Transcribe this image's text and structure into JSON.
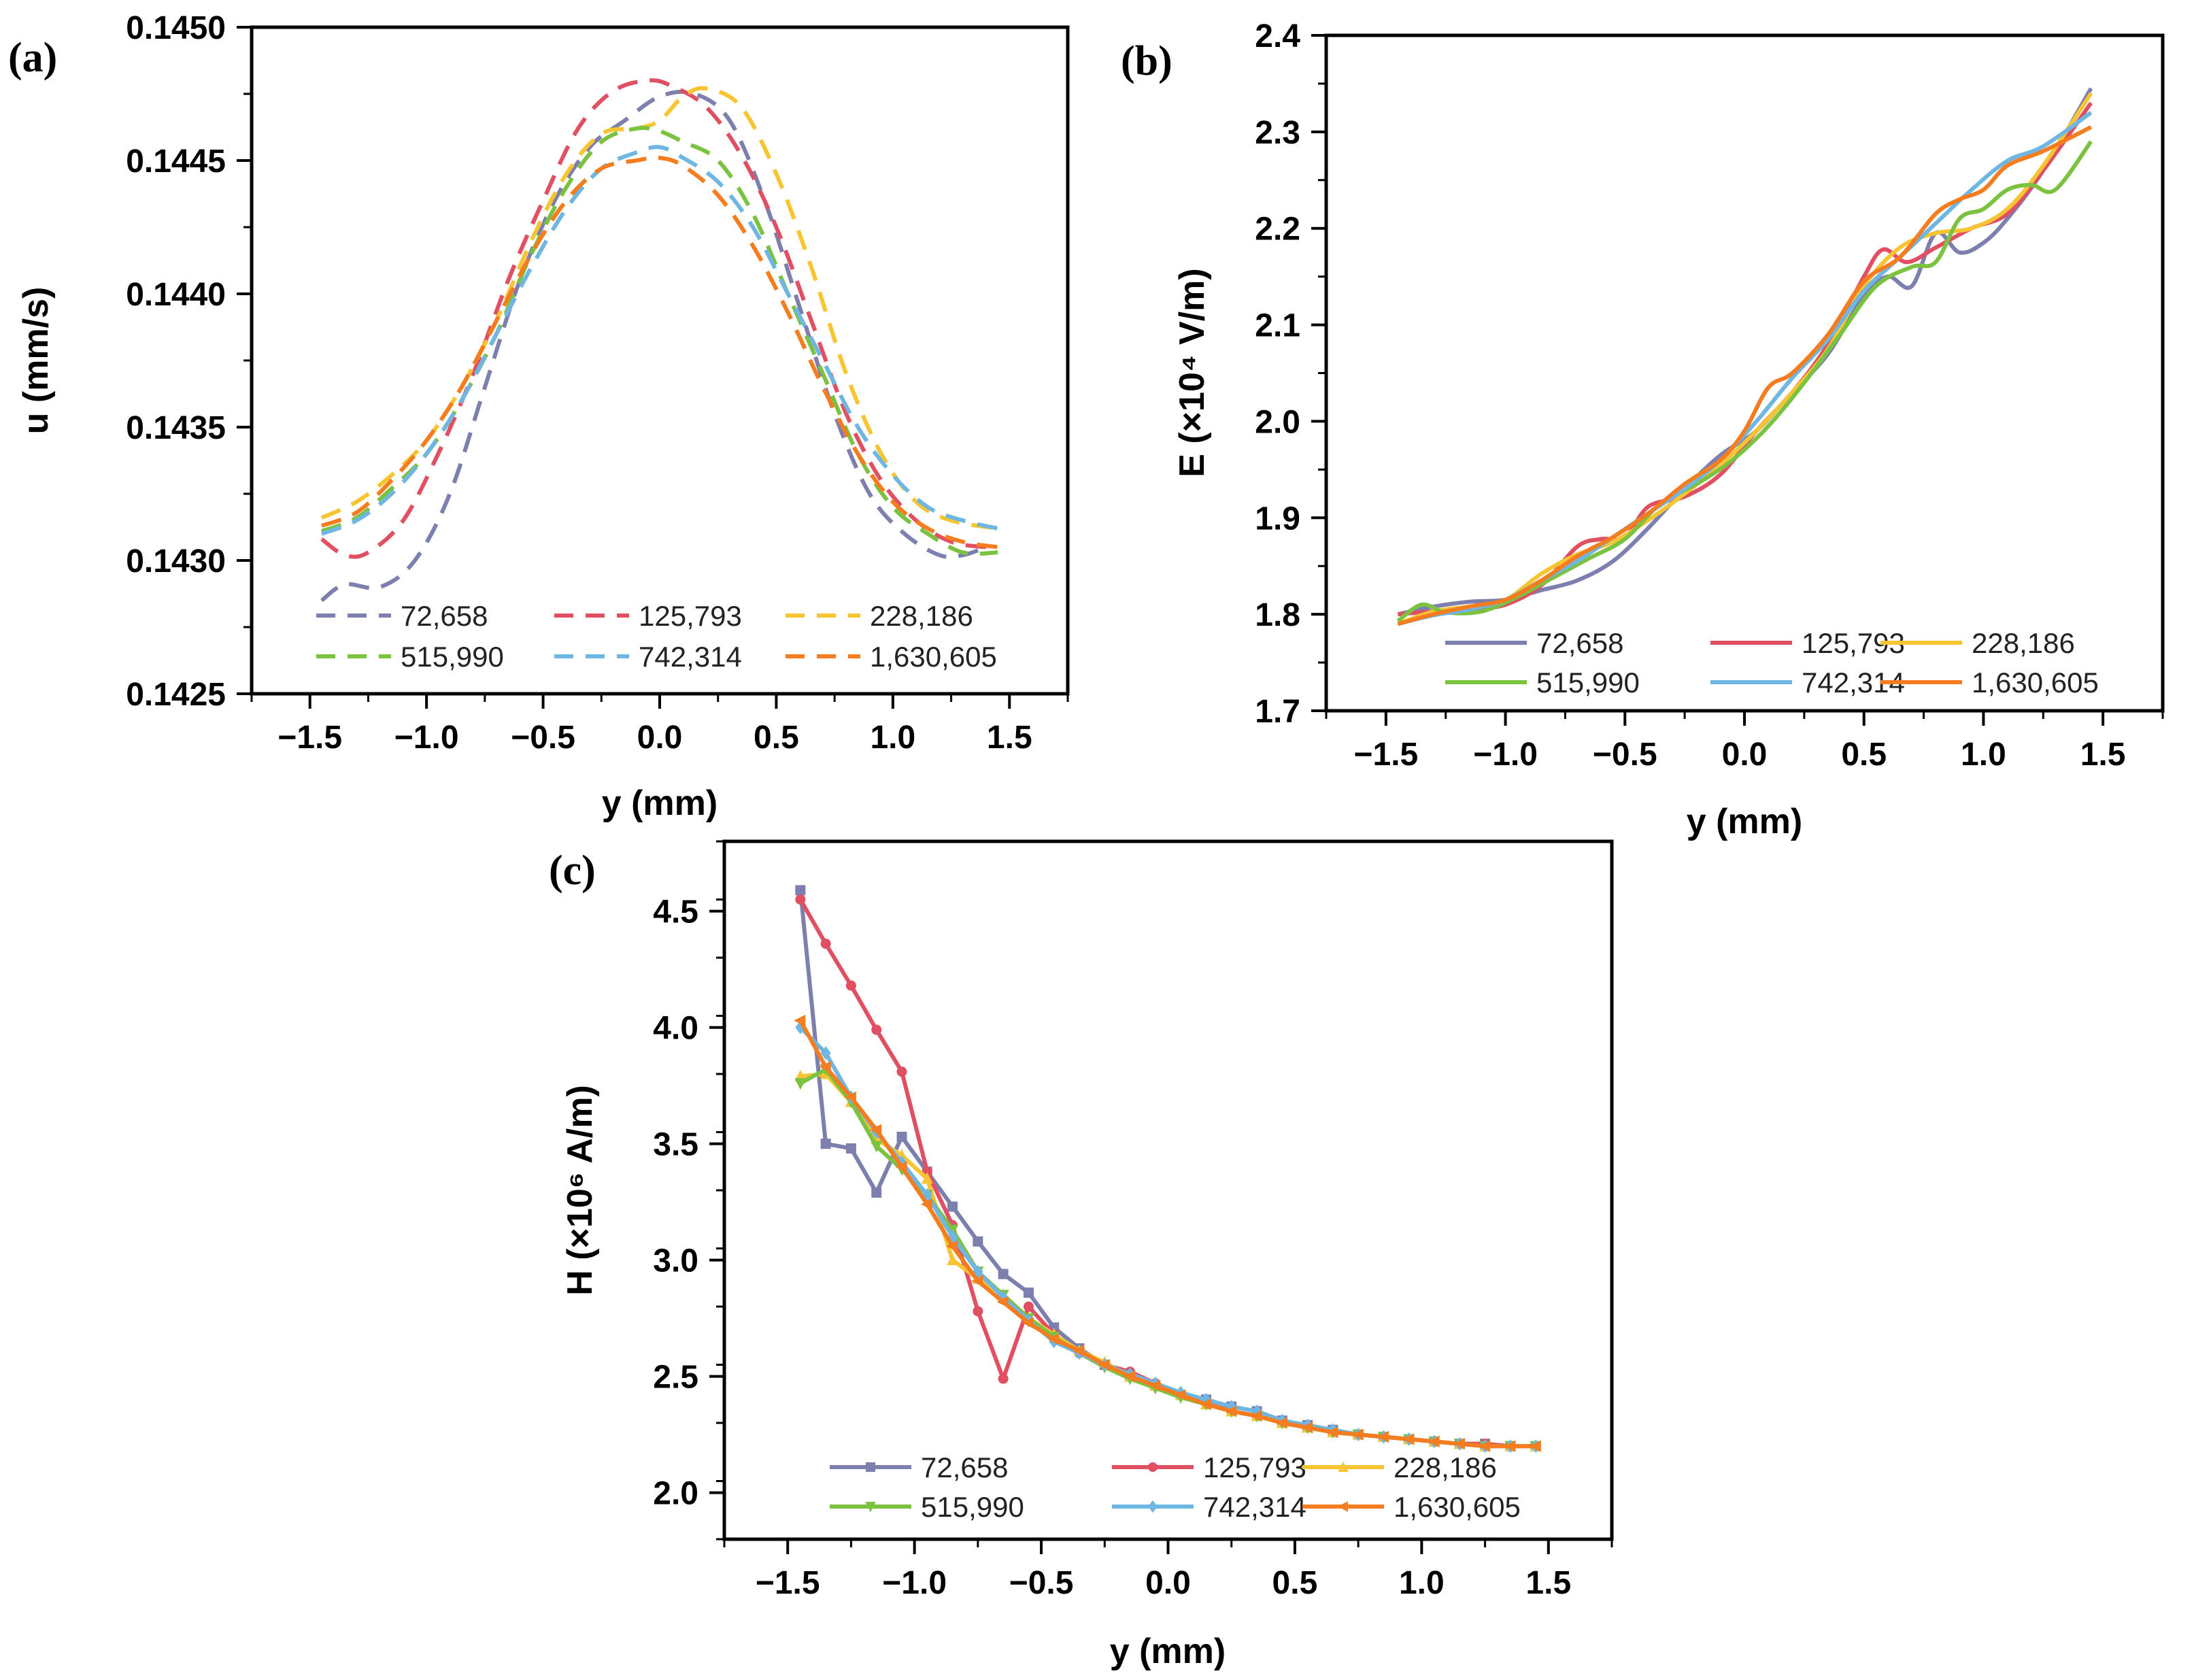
{
  "colors": {
    "72,658": "#7d7fae",
    "125,793": "#e04f62",
    "228,186": "#f7c531",
    "515,990": "#7cc241",
    "742,314": "#6fb7e2",
    "1,630,605": "#f57d1f"
  },
  "chart_data": [
    {
      "panel": "(a)",
      "type": "line",
      "line_style": "dashed",
      "xlabel": "y (mm)",
      "ylabel": "u (mm/s)",
      "xlim": [
        -1.75,
        1.75
      ],
      "ylim": [
        0.1425,
        0.145
      ],
      "xticks": [
        "−1.5",
        "−1.0",
        "−0.5",
        "0.0",
        "0.5",
        "1.0",
        "1.5"
      ],
      "yticks": [
        "0.1425",
        "0.1430",
        "0.1435",
        "0.1440",
        "0.1445",
        "0.1450"
      ],
      "legend": [
        "72,658",
        "125,793",
        "228,186",
        "515,990",
        "742,314",
        "1,630,605"
      ],
      "series": [
        {
          "name": "72,658",
          "x": [
            -1.45,
            -1.35,
            -1.2,
            -1.05,
            -0.9,
            -0.75,
            -0.6,
            -0.45,
            -0.3,
            -0.15,
            0.0,
            0.15,
            0.3,
            0.45,
            0.6,
            0.75,
            0.9,
            1.05,
            1.2,
            1.3,
            1.4
          ],
          "y": [
            0.14285,
            0.14291,
            0.1429,
            0.143,
            0.14325,
            0.14365,
            0.14405,
            0.14435,
            0.14455,
            0.14465,
            0.14474,
            0.14475,
            0.14465,
            0.14435,
            0.14395,
            0.14355,
            0.14325,
            0.1431,
            0.14302,
            0.14302,
            0.14305
          ]
        },
        {
          "name": "125,793",
          "x": [
            -1.45,
            -1.35,
            -1.25,
            -1.1,
            -0.95,
            -0.8,
            -0.65,
            -0.5,
            -0.35,
            -0.2,
            -0.05,
            0.05,
            0.2,
            0.35,
            0.5,
            0.65,
            0.8,
            0.95,
            1.1,
            1.25,
            1.4
          ],
          "y": [
            0.14308,
            0.14302,
            0.14303,
            0.14315,
            0.1434,
            0.1437,
            0.14405,
            0.14435,
            0.14462,
            0.14476,
            0.1448,
            0.14478,
            0.1447,
            0.14452,
            0.14425,
            0.1439,
            0.14355,
            0.1433,
            0.14315,
            0.14307,
            0.14305
          ]
        },
        {
          "name": "228,186",
          "x": [
            -1.45,
            -1.3,
            -1.15,
            -1.0,
            -0.85,
            -0.7,
            -0.55,
            -0.4,
            -0.25,
            -0.1,
            0.0,
            0.1,
            0.2,
            0.35,
            0.5,
            0.65,
            0.8,
            0.95,
            1.1,
            1.25,
            1.45
          ],
          "y": [
            0.14316,
            0.14322,
            0.14332,
            0.14345,
            0.14365,
            0.1439,
            0.1442,
            0.14445,
            0.1446,
            0.14462,
            0.14465,
            0.14474,
            0.14477,
            0.1447,
            0.14445,
            0.1441,
            0.1437,
            0.1434,
            0.14322,
            0.14315,
            0.14312
          ]
        },
        {
          "name": "515,990",
          "x": [
            -1.45,
            -1.3,
            -1.15,
            -1.0,
            -0.85,
            -0.7,
            -0.55,
            -0.4,
            -0.25,
            -0.1,
            0.0,
            0.1,
            0.25,
            0.4,
            0.55,
            0.7,
            0.85,
            1.0,
            1.15,
            1.3,
            1.45
          ],
          "y": [
            0.14311,
            0.14316,
            0.14327,
            0.1434,
            0.1436,
            0.14385,
            0.14415,
            0.1444,
            0.14457,
            0.14462,
            0.14461,
            0.14457,
            0.1445,
            0.1443,
            0.144,
            0.1437,
            0.1434,
            0.1432,
            0.1431,
            0.14303,
            0.14303
          ]
        },
        {
          "name": "742,314",
          "x": [
            -1.45,
            -1.3,
            -1.15,
            -1.0,
            -0.85,
            -0.7,
            -0.55,
            -0.4,
            -0.25,
            -0.1,
            0.0,
            0.1,
            0.25,
            0.4,
            0.55,
            0.7,
            0.85,
            1.0,
            1.15,
            1.3,
            1.45
          ],
          "y": [
            0.1431,
            0.14315,
            0.14325,
            0.1434,
            0.1436,
            0.14385,
            0.1441,
            0.14432,
            0.14447,
            0.14453,
            0.14455,
            0.14451,
            0.14442,
            0.14425,
            0.144,
            0.14375,
            0.1435,
            0.14332,
            0.1432,
            0.14315,
            0.14312
          ]
        },
        {
          "name": "1,630,605",
          "x": [
            -1.45,
            -1.3,
            -1.15,
            -1.0,
            -0.85,
            -0.7,
            -0.55,
            -0.4,
            -0.25,
            -0.1,
            0.0,
            0.1,
            0.25,
            0.4,
            0.55,
            0.7,
            0.85,
            1.0,
            1.15,
            1.3,
            1.45
          ],
          "y": [
            0.14313,
            0.14318,
            0.1433,
            0.14345,
            0.14365,
            0.1439,
            0.14415,
            0.14435,
            0.14447,
            0.1445,
            0.14451,
            0.14448,
            0.14437,
            0.14418,
            0.14393,
            0.14365,
            0.1434,
            0.14322,
            0.14312,
            0.14307,
            0.14305
          ]
        }
      ]
    },
    {
      "panel": "(b)",
      "type": "line",
      "line_style": "solid",
      "xlabel": "y (mm)",
      "ylabel": "E (×10⁴ V/m)",
      "xlim": [
        -1.75,
        1.75
      ],
      "ylim": [
        1.7,
        2.4
      ],
      "xticks": [
        "−1.5",
        "−1.0",
        "−0.5",
        "0.0",
        "0.5",
        "1.0",
        "1.5"
      ],
      "yticks": [
        "1.7",
        "1.8",
        "1.9",
        "2.0",
        "2.1",
        "2.2",
        "2.3",
        "2.4"
      ],
      "legend": [
        "72,658",
        "125,793",
        "228,186",
        "515,990",
        "742,314",
        "1,630,605"
      ],
      "series": [
        {
          "name": "72,658",
          "x": [
            -1.45,
            -1.3,
            -1.15,
            -1.0,
            -0.85,
            -0.7,
            -0.55,
            -0.4,
            -0.25,
            -0.1,
            0.05,
            0.2,
            0.35,
            0.5,
            0.6,
            0.7,
            0.8,
            0.9,
            1.0,
            1.1,
            1.25,
            1.45
          ],
          "y": [
            1.8,
            1.808,
            1.813,
            1.815,
            1.825,
            1.835,
            1.855,
            1.89,
            1.93,
            1.965,
            1.99,
            2.03,
            2.07,
            2.13,
            2.15,
            2.14,
            2.195,
            2.175,
            2.185,
            2.21,
            2.26,
            2.345
          ]
        },
        {
          "name": "125,793",
          "x": [
            -1.45,
            -1.3,
            -1.15,
            -1.0,
            -0.85,
            -0.7,
            -0.6,
            -0.5,
            -0.4,
            -0.25,
            -0.1,
            0.05,
            0.2,
            0.35,
            0.5,
            0.58,
            0.68,
            0.8,
            0.95,
            1.1,
            1.25,
            1.45
          ],
          "y": [
            1.8,
            1.803,
            1.805,
            1.81,
            1.83,
            1.87,
            1.878,
            1.88,
            1.912,
            1.922,
            1.945,
            1.99,
            2.03,
            2.08,
            2.15,
            2.178,
            2.165,
            2.18,
            2.2,
            2.215,
            2.26,
            2.33
          ]
        },
        {
          "name": "228,186",
          "x": [
            -1.45,
            -1.3,
            -1.15,
            -1.0,
            -0.85,
            -0.7,
            -0.55,
            -0.4,
            -0.25,
            -0.1,
            0.05,
            0.2,
            0.35,
            0.5,
            0.65,
            0.8,
            0.95,
            1.1,
            1.25,
            1.45
          ],
          "y": [
            1.79,
            1.803,
            1.808,
            1.815,
            1.842,
            1.862,
            1.875,
            1.898,
            1.925,
            1.955,
            1.99,
            2.03,
            2.075,
            2.14,
            2.18,
            2.195,
            2.2,
            2.22,
            2.265,
            2.34
          ]
        },
        {
          "name": "515,990",
          "x": [
            -1.45,
            -1.35,
            -1.25,
            -1.1,
            -0.95,
            -0.8,
            -0.65,
            -0.5,
            -0.35,
            -0.2,
            -0.05,
            0.1,
            0.25,
            0.4,
            0.55,
            0.7,
            0.8,
            0.9,
            1.0,
            1.1,
            1.2,
            1.3,
            1.45
          ],
          "y": [
            1.793,
            1.81,
            1.802,
            1.803,
            1.818,
            1.838,
            1.858,
            1.878,
            1.915,
            1.935,
            1.96,
            1.995,
            2.04,
            2.09,
            2.14,
            2.16,
            2.165,
            2.21,
            2.22,
            2.24,
            2.245,
            2.24,
            2.29
          ]
        },
        {
          "name": "742,314",
          "x": [
            -1.45,
            -1.3,
            -1.15,
            -1.0,
            -0.85,
            -0.7,
            -0.55,
            -0.4,
            -0.25,
            -0.1,
            0.05,
            0.2,
            0.35,
            0.5,
            0.65,
            0.8,
            0.95,
            1.1,
            1.25,
            1.45
          ],
          "y": [
            1.79,
            1.799,
            1.805,
            1.815,
            1.835,
            1.855,
            1.88,
            1.905,
            1.93,
            1.96,
            2.0,
            2.045,
            2.085,
            2.135,
            2.17,
            2.205,
            2.24,
            2.27,
            2.285,
            2.32
          ]
        },
        {
          "name": "1,630,605",
          "x": [
            -1.45,
            -1.3,
            -1.15,
            -1.0,
            -0.85,
            -0.7,
            -0.55,
            -0.4,
            -0.25,
            -0.1,
            0.0,
            0.1,
            0.2,
            0.35,
            0.5,
            0.65,
            0.8,
            0.9,
            1.0,
            1.1,
            1.25,
            1.45
          ],
          "y": [
            1.79,
            1.8,
            1.808,
            1.815,
            1.835,
            1.86,
            1.88,
            1.905,
            1.935,
            1.96,
            1.99,
            2.035,
            2.05,
            2.09,
            2.145,
            2.17,
            2.215,
            2.23,
            2.24,
            2.265,
            2.28,
            2.305
          ]
        }
      ]
    },
    {
      "panel": "(c)",
      "type": "line",
      "line_style": "solid-with-markers",
      "xlabel": "y (mm)",
      "ylabel": "H (×10⁶ A/m)",
      "xlim": [
        -1.75,
        1.75
      ],
      "ylim": [
        1.8,
        4.8
      ],
      "xticks": [
        "−1.5",
        "−1.0",
        "−0.5",
        "0.0",
        "0.5",
        "1.0",
        "1.5"
      ],
      "yticks": [
        "2.0",
        "2.5",
        "3.0",
        "3.5",
        "4.0",
        "4.5"
      ],
      "legend": [
        "72,658",
        "125,793",
        "228,186",
        "515,990",
        "742,314",
        "1,630,605"
      ],
      "x": [
        -1.45,
        -1.35,
        -1.25,
        -1.15,
        -1.05,
        -0.95,
        -0.85,
        -0.75,
        -0.65,
        -0.55,
        -0.45,
        -0.35,
        -0.25,
        -0.15,
        -0.05,
        0.05,
        0.15,
        0.25,
        0.35,
        0.45,
        0.55,
        0.65,
        0.75,
        0.85,
        0.95,
        1.05,
        1.15,
        1.25,
        1.35,
        1.45
      ],
      "series": [
        {
          "name": "72,658",
          "marker": "square",
          "y": [
            4.59,
            3.5,
            3.48,
            3.29,
            3.53,
            3.38,
            3.23,
            3.08,
            2.94,
            2.86,
            2.71,
            2.62,
            2.55,
            2.5,
            2.46,
            2.42,
            2.4,
            2.37,
            2.35,
            2.31,
            2.29,
            2.27,
            2.25,
            2.24,
            2.23,
            2.22,
            2.21,
            2.21,
            2.2,
            2.2
          ]
        },
        {
          "name": "125,793",
          "marker": "circle",
          "y": [
            4.55,
            4.36,
            4.18,
            3.99,
            3.81,
            3.38,
            3.15,
            2.78,
            2.49,
            2.8,
            2.68,
            2.6,
            2.55,
            2.52,
            2.47,
            2.42,
            2.39,
            2.35,
            2.33,
            2.3,
            2.28,
            2.26,
            2.25,
            2.24,
            2.23,
            2.22,
            2.21,
            2.21,
            2.2,
            2.2
          ]
        },
        {
          "name": "228,186",
          "marker": "triangle-up",
          "y": [
            3.79,
            3.8,
            3.68,
            3.52,
            3.45,
            3.35,
            3.0,
            2.92,
            2.85,
            2.75,
            2.68,
            2.61,
            2.56,
            2.5,
            2.46,
            2.42,
            2.38,
            2.35,
            2.33,
            2.3,
            2.28,
            2.26,
            2.25,
            2.24,
            2.23,
            2.22,
            2.21,
            2.2,
            2.2,
            2.2
          ]
        },
        {
          "name": "515,990",
          "marker": "triangle-down",
          "y": [
            3.76,
            3.82,
            3.68,
            3.49,
            3.39,
            3.28,
            3.13,
            2.95,
            2.85,
            2.75,
            2.67,
            2.6,
            2.54,
            2.49,
            2.45,
            2.41,
            2.38,
            2.35,
            2.33,
            2.3,
            2.28,
            2.26,
            2.25,
            2.24,
            2.23,
            2.22,
            2.21,
            2.2,
            2.2,
            2.2
          ]
        },
        {
          "name": "742,314",
          "marker": "diamond",
          "y": [
            4.0,
            3.89,
            3.7,
            3.55,
            3.42,
            3.28,
            3.1,
            2.95,
            2.84,
            2.74,
            2.65,
            2.6,
            2.55,
            2.51,
            2.47,
            2.43,
            2.4,
            2.37,
            2.35,
            2.31,
            2.29,
            2.27,
            2.25,
            2.24,
            2.23,
            2.22,
            2.21,
            2.2,
            2.2,
            2.2
          ]
        },
        {
          "name": "1,630,605",
          "marker": "left-triangle",
          "y": [
            4.03,
            3.83,
            3.7,
            3.56,
            3.4,
            3.24,
            3.06,
            2.91,
            2.82,
            2.73,
            2.66,
            2.61,
            2.55,
            2.5,
            2.46,
            2.42,
            2.38,
            2.35,
            2.33,
            2.3,
            2.28,
            2.26,
            2.25,
            2.24,
            2.23,
            2.22,
            2.21,
            2.2,
            2.2,
            2.2
          ]
        }
      ]
    }
  ]
}
